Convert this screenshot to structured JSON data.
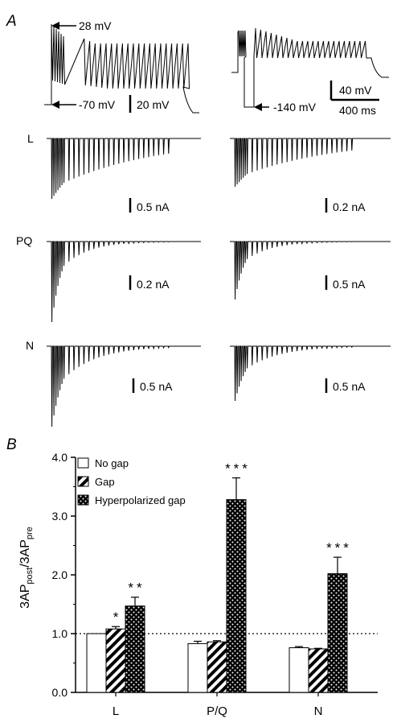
{
  "panel_a": {
    "letter": "A",
    "voltage_annotations": {
      "peak": "28 mV",
      "rest": "-70 mV",
      "hyper": "-140 mV",
      "scale_left": "20 mV",
      "scale_right_v": "40 mV",
      "scale_right_t": "400 ms"
    },
    "rows": [
      {
        "label": "L",
        "scale_left": "0.5 nA",
        "scale_right": "0.2 nA"
      },
      {
        "label": "PQ",
        "scale_left": "0.2 nA",
        "scale_right": "0.5 nA"
      },
      {
        "label": "N",
        "scale_left": "0.5 nA",
        "scale_right": "0.5 nA"
      }
    ]
  },
  "panel_b": {
    "letter": "B"
  },
  "chart_data": {
    "type": "bar",
    "ylabel": "3AP",
    "ylabel_sub_post": "post",
    "ylabel_mid": "/3AP",
    "ylabel_sub_pre": "pre",
    "categories": [
      "L",
      "P/Q",
      "N"
    ],
    "ylim": [
      0,
      4.0
    ],
    "yticks": [
      "0.0",
      "1.0",
      "2.0",
      "3.0",
      "4.0"
    ],
    "reference_line": 1.0,
    "series": [
      {
        "name": "No gap",
        "values": [
          1.0,
          0.83,
          0.76
        ],
        "errors": [
          0.0,
          0.04,
          0.02
        ],
        "fill": "#ffffff"
      },
      {
        "name": "Gap",
        "values": [
          1.08,
          0.86,
          0.74
        ],
        "errors": [
          0.04,
          0.02,
          0.01
        ],
        "fill": "hatch"
      },
      {
        "name": "Hyperpolarized gap",
        "values": [
          1.47,
          3.28,
          2.02
        ],
        "errors": [
          0.15,
          0.37,
          0.28
        ],
        "fill": "dots"
      }
    ],
    "significance": [
      {
        "category": "L",
        "series": "Gap",
        "text": "*"
      },
      {
        "category": "L",
        "series": "Hyperpolarized gap",
        "text": "**"
      },
      {
        "category": "P/Q",
        "series": "Hyperpolarized gap",
        "text": "***"
      },
      {
        "category": "N",
        "series": "Hyperpolarized gap",
        "text": "***"
      }
    ]
  }
}
